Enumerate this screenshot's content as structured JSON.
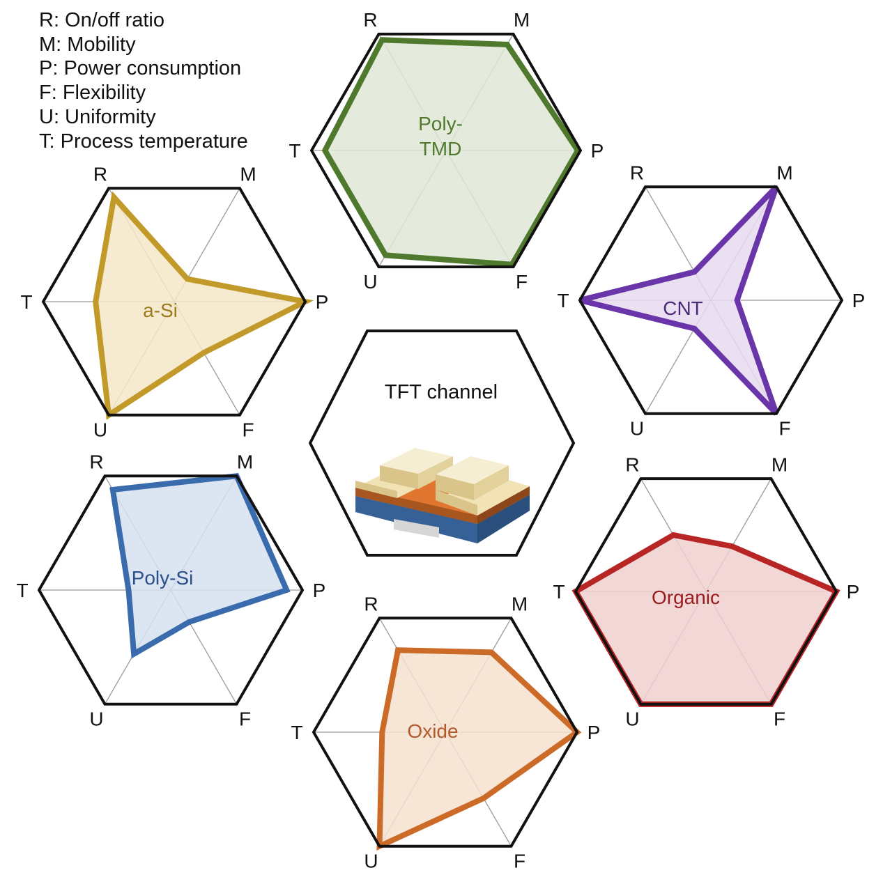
{
  "legend": [
    "R: On/off ratio",
    "M: Mobility",
    "P: Power consumption",
    "F: Flexibility",
    "U: Uniformity",
    "T: Process temperature"
  ],
  "center": {
    "title": "TFT channel"
  },
  "chart_data": {
    "type": "radar",
    "axes": [
      "R",
      "M",
      "P",
      "F",
      "U",
      "T"
    ],
    "range": [
      0,
      1
    ],
    "grid": true,
    "series": [
      {
        "name": "Poly-TMD",
        "label_lines": [
          "Poly-",
          "TMD"
        ],
        "color": "#4f7a2e",
        "fill": "#dfe8d6",
        "text_color": "#4f7a2e",
        "values": [
          0.95,
          0.91,
          0.98,
          0.98,
          0.9,
          0.9
        ]
      },
      {
        "name": "a-Si",
        "label_lines": [
          "a-Si"
        ],
        "color": "#c19a2a",
        "fill": "#f4e8c8",
        "text_color": "#9a7a1a",
        "values": [
          0.92,
          0.2,
          1.0,
          0.45,
          1.0,
          0.6
        ]
      },
      {
        "name": "CNT",
        "label_lines": [
          "CNT"
        ],
        "color": "#6a35a8",
        "fill": "#e6daf0",
        "text_color": "#4c2a7a",
        "values": [
          0.25,
          1.0,
          0.2,
          1.0,
          0.25,
          1.0
        ]
      },
      {
        "name": "Poly-Si",
        "label_lines": [
          "Poly-Si"
        ],
        "color": "#3a6cad",
        "fill": "#d6e2f0",
        "text_color": "#2a4f8a",
        "values": [
          0.88,
          1.0,
          0.88,
          0.28,
          0.56,
          0.32
        ]
      },
      {
        "name": "Organic",
        "label_lines": [
          "Organic"
        ],
        "color": "#b72525",
        "fill": "#f0d0d0",
        "text_color": "#9a1c1c",
        "values": [
          0.5,
          0.4,
          1.0,
          1.0,
          1.0,
          1.0
        ]
      },
      {
        "name": "Oxide",
        "label_lines": [
          "Oxide"
        ],
        "color": "#cc6a28",
        "fill": "#f6e0cf",
        "text_color": "#b4582a",
        "values": [
          0.72,
          0.7,
          1.0,
          0.58,
          1.0,
          0.48
        ]
      }
    ]
  }
}
